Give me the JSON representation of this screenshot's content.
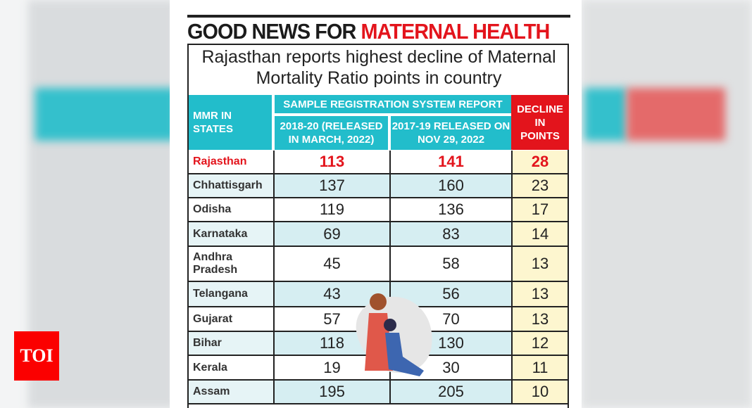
{
  "headline": {
    "part1": "GOOD NEWS FOR ",
    "part2": "MATERNAL HEALTH"
  },
  "subtitle": "Rajasthan reports highest decline of Maternal Mortality Ratio points in country",
  "logo": "TOI",
  "colors": {
    "header": "#22bdcb",
    "accent": "#e3141c",
    "row_alt": "#d6eef2",
    "decline_bg": "#fdf6cf"
  },
  "chart_data": {
    "type": "table",
    "title": "GOOD NEWS FOR MATERNAL HEALTH",
    "subtitle": "Rajasthan reports highest decline of Maternal Mortality Ratio points in country",
    "group_header": "SAMPLE REGISTRATION SYSTEM REPORT",
    "columns": [
      "MMR IN STATES",
      "2018-20 (RELEASED IN MARCH, 2022)",
      "2017-19 RELEASED ON NOV 29, 2022",
      "DECLINE IN POINTS"
    ],
    "rows": [
      [
        "Rajasthan",
        "113",
        "141",
        "28"
      ],
      [
        "Chhattisgarh",
        "137",
        "160",
        "23"
      ],
      [
        "Odisha",
        "119",
        "136",
        "17"
      ],
      [
        "Karnataka",
        "69",
        "83",
        "14"
      ],
      [
        "Andhra Pradesh",
        "45",
        "58",
        "13"
      ],
      [
        "Telangana",
        "43",
        "56",
        "13"
      ],
      [
        "Gujarat",
        "57",
        "70",
        "13"
      ],
      [
        "Bihar",
        "118",
        "130",
        "12"
      ],
      [
        "Kerala",
        "19",
        "30",
        "11"
      ],
      [
        "Assam",
        "195",
        "205",
        "10"
      ]
    ],
    "highlight_row": "Rajasthan"
  }
}
